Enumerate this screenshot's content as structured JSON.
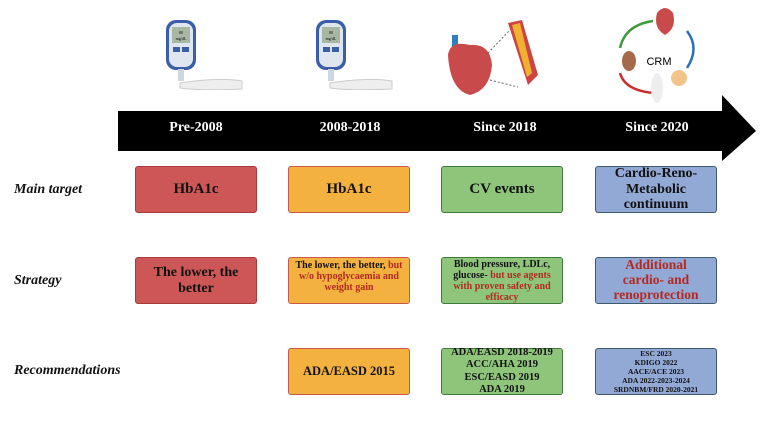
{
  "eras": [
    "Pre-2008",
    "2008-2018",
    "Since 2018",
    "Since 2020"
  ],
  "row_labels": {
    "target": "Main target",
    "strategy": "Strategy",
    "recommendations": "Recommendations"
  },
  "main_target": [
    "HbA1c",
    "HbA1c",
    "CV events",
    "Cardio-Reno-Metabolic continuum"
  ],
  "strategy": {
    "pre2008": "The lower, the better",
    "b2008_main": "The lower, the better,",
    "b2008_highlight": "but w/o hypoglycaemia and weight gain",
    "s2018_main": "Blood pressure, LDLc, glucose-",
    "s2018_highlight": "but use agents with proven safety and efficacy",
    "s2020_highlight": "Additional cardio- and renoprotection"
  },
  "recommendations": {
    "b2008": [
      "ADA/EASD 2015"
    ],
    "s2018": [
      "ADA/EASD 2018-2019",
      "ACC/AHA 2019",
      "ESC/EASD 2019",
      "ADA 2019"
    ],
    "s2020": [
      "ESC 2023",
      "KDIGO 2022",
      "AACE/ACE 2023",
      "ADA 2022-2023-2024",
      "SRDNBM/FRD 2020-2021"
    ]
  },
  "illustrations": {
    "meter_reading": "80",
    "meter_unit": "mg/dL",
    "crm_label": "CRM"
  },
  "colors": {
    "red": "#cd5757",
    "orange": "#f3b13f",
    "green": "#8fc57b",
    "blue": "#92a8d5",
    "highlight": "#b22a22"
  }
}
